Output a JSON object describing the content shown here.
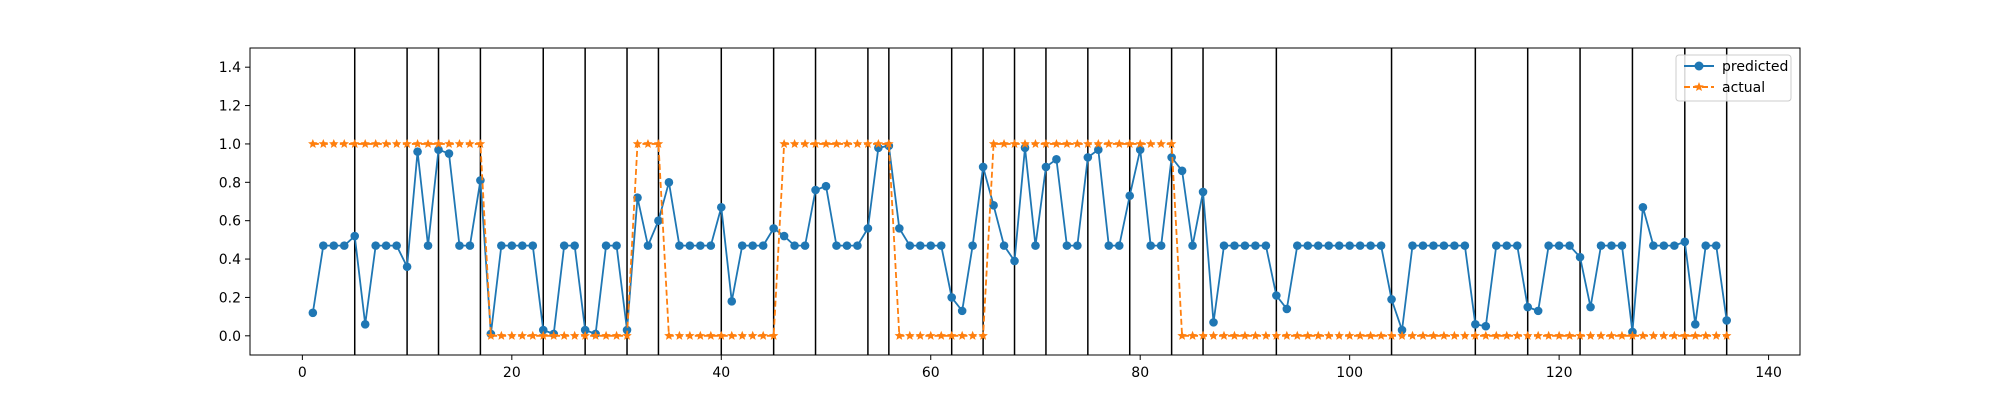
{
  "chart_data": {
    "type": "line",
    "title": "",
    "xlabel": "",
    "ylabel": "",
    "xlim": [
      -5,
      143
    ],
    "ylim": [
      -0.1,
      1.5
    ],
    "xticks": [
      0,
      20,
      40,
      60,
      80,
      100,
      120,
      140
    ],
    "yticks": [
      0.0,
      0.2,
      0.4,
      0.6,
      0.8,
      1.0,
      1.2,
      1.4
    ],
    "xtick_labels": [
      "0",
      "20",
      "40",
      "60",
      "80",
      "100",
      "120",
      "140"
    ],
    "ytick_labels": [
      "0.0",
      "0.2",
      "0.4",
      "0.6",
      "0.8",
      "1.0",
      "1.2",
      "1.4"
    ],
    "grid": false,
    "legend": "top-right",
    "vertical_lines_x": [
      5,
      10,
      13,
      17,
      23,
      27,
      31,
      34,
      40,
      45,
      49,
      54,
      56,
      62,
      65,
      68,
      71,
      75,
      79,
      83,
      86,
      93,
      104,
      112,
      117,
      122,
      127,
      132,
      136
    ],
    "x": [
      1,
      2,
      3,
      4,
      5,
      6,
      7,
      8,
      9,
      10,
      11,
      12,
      13,
      14,
      15,
      16,
      17,
      18,
      19,
      20,
      21,
      22,
      23,
      24,
      25,
      26,
      27,
      28,
      29,
      30,
      31,
      32,
      33,
      34,
      35,
      36,
      37,
      38,
      39,
      40,
      41,
      42,
      43,
      44,
      45,
      46,
      47,
      48,
      49,
      50,
      51,
      52,
      53,
      54,
      55,
      56,
      57,
      58,
      59,
      60,
      61,
      62,
      63,
      64,
      65,
      66,
      67,
      68,
      69,
      70,
      71,
      72,
      73,
      74,
      75,
      76,
      77,
      78,
      79,
      80,
      81,
      82,
      83,
      84,
      85,
      86,
      87,
      88,
      89,
      90,
      91,
      92,
      93,
      94,
      95,
      96,
      97,
      98,
      99,
      100,
      101,
      102,
      103,
      104,
      105,
      106,
      107,
      108,
      109,
      110,
      111,
      112,
      113,
      114,
      115,
      116,
      117,
      118,
      119,
      120,
      121,
      122,
      123,
      124,
      125,
      126,
      127,
      128,
      129,
      130,
      131,
      132,
      133,
      134,
      135,
      136
    ],
    "series": [
      {
        "name": "predicted",
        "color": "#1f77b4",
        "marker": "circle",
        "linestyle": "solid",
        "values": [
          0.12,
          0.47,
          0.47,
          0.47,
          0.52,
          0.06,
          0.47,
          0.47,
          0.47,
          0.36,
          0.96,
          0.47,
          0.97,
          0.95,
          0.47,
          0.47,
          0.81,
          0.01,
          0.47,
          0.47,
          0.47,
          0.47,
          0.03,
          0.01,
          0.47,
          0.47,
          0.03,
          0.01,
          0.47,
          0.47,
          0.03,
          0.72,
          0.47,
          0.6,
          0.8,
          0.47,
          0.47,
          0.47,
          0.47,
          0.67,
          0.18,
          0.47,
          0.47,
          0.47,
          0.56,
          0.52,
          0.47,
          0.47,
          0.76,
          0.78,
          0.47,
          0.47,
          0.47,
          0.56,
          0.98,
          0.99,
          0.56,
          0.47,
          0.47,
          0.47,
          0.47,
          0.2,
          0.13,
          0.47,
          0.88,
          0.68,
          0.47,
          0.39,
          0.98,
          0.47,
          0.88,
          0.92,
          0.47,
          0.47,
          0.93,
          0.97,
          0.47,
          0.47,
          0.73,
          0.97,
          0.47,
          0.47,
          0.93,
          0.86,
          0.47,
          0.75,
          0.07,
          0.47,
          0.47,
          0.47,
          0.47,
          0.47,
          0.21,
          0.14,
          0.47,
          0.47,
          0.47,
          0.47,
          0.47,
          0.47,
          0.47,
          0.47,
          0.47,
          0.19,
          0.03,
          0.47,
          0.47,
          0.47,
          0.47,
          0.47,
          0.47,
          0.06,
          0.05,
          0.47,
          0.47,
          0.47,
          0.15,
          0.13,
          0.47,
          0.47,
          0.47,
          0.41,
          0.15,
          0.47,
          0.47,
          0.47,
          0.02,
          0.67,
          0.47,
          0.47,
          0.47,
          0.49,
          0.06,
          0.47,
          0.47,
          0.08
        ]
      },
      {
        "name": "actual",
        "color": "#ff7f0e",
        "marker": "star",
        "linestyle": "dashed",
        "values": [
          1,
          1,
          1,
          1,
          1,
          1,
          1,
          1,
          1,
          1,
          1,
          1,
          1,
          1,
          1,
          1,
          1,
          0,
          0,
          0,
          0,
          0,
          0,
          0,
          0,
          0,
          0,
          0,
          0,
          0,
          0,
          1,
          1,
          1,
          0,
          0,
          0,
          0,
          0,
          0,
          0,
          0,
          0,
          0,
          0,
          1,
          1,
          1,
          1,
          1,
          1,
          1,
          1,
          1,
          1,
          1,
          0,
          0,
          0,
          0,
          0,
          0,
          0,
          0,
          0,
          1,
          1,
          1,
          1,
          1,
          1,
          1,
          1,
          1,
          1,
          1,
          1,
          1,
          1,
          1,
          1,
          1,
          1,
          0,
          0,
          0,
          0,
          0,
          0,
          0,
          0,
          0,
          0,
          0,
          0,
          0,
          0,
          0,
          0,
          0,
          0,
          0,
          0,
          0,
          0,
          0,
          0,
          0,
          0,
          0,
          0,
          0,
          0,
          0,
          0,
          0,
          0,
          0,
          0,
          0,
          0,
          0,
          0,
          0,
          0,
          0,
          0,
          0,
          0,
          0,
          0,
          0,
          0,
          0,
          0,
          0
        ]
      }
    ]
  }
}
